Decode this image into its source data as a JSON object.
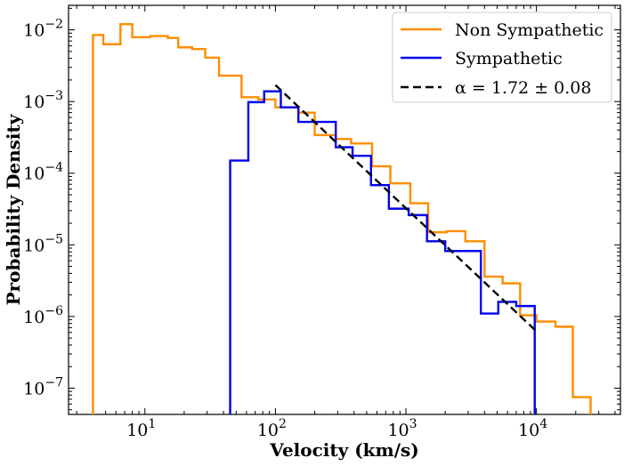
{
  "chart_data": {
    "type": "histogram",
    "title": "",
    "xlabel": "Velocity (km/s)",
    "ylabel": "Probability Density",
    "xscale": "log",
    "yscale": "log",
    "xlim": [
      2.6,
      44000
    ],
    "ylim": [
      4.3e-08,
      0.022
    ],
    "grid": false,
    "legend_position": "top-right",
    "x_tick_labels": [
      {
        "value": 10,
        "label": "10",
        "exp": "1"
      },
      {
        "value": 100,
        "label": "10",
        "exp": "2"
      },
      {
        "value": 1000,
        "label": "10",
        "exp": "3"
      },
      {
        "value": 10000,
        "label": "10",
        "exp": "4"
      }
    ],
    "y_tick_labels": [
      {
        "value": 1e-07,
        "label": "10",
        "exp": "−7"
      },
      {
        "value": 1e-06,
        "label": "10",
        "exp": "−6"
      },
      {
        "value": 1e-05,
        "label": "10",
        "exp": "−5"
      },
      {
        "value": 0.0001,
        "label": "10",
        "exp": "−4"
      },
      {
        "value": 0.001,
        "label": "10",
        "exp": "−3"
      },
      {
        "value": 0.01,
        "label": "10",
        "exp": "−2"
      }
    ],
    "series": [
      {
        "name": "Non Sympathetic",
        "kind": "step",
        "color": "#ff8c00",
        "bin_edges": [
          4.0,
          4.8,
          6.5,
          8.0,
          11.0,
          15.0,
          18.0,
          23.0,
          29.0,
          37.0,
          55.0,
          74.0,
          100.0,
          150.0,
          200.0,
          290.0,
          380.0,
          550.0,
          760.0,
          1080.0,
          1480.0,
          2050.0,
          2850.0,
          4000.0,
          5500.0,
          7500.0,
          10000.0,
          14000.0,
          19000.0,
          26000.0,
          35000.0
        ],
        "values": [
          0.0085,
          0.0063,
          0.012,
          0.0079,
          0.0082,
          0.0077,
          0.0057,
          0.0054,
          0.0041,
          0.0023,
          0.00115,
          0.00107,
          0.00083,
          0.0007,
          0.00034,
          0.0003,
          0.00026,
          0.000125,
          7.2e-05,
          3.8e-05,
          1.5e-05,
          1.55e-05,
          1.12e-05,
          3.6e-06,
          2.9e-06,
          1.04e-06,
          8.5e-07,
          7.2e-07,
          7.5e-08,
          3e-08
        ]
      },
      {
        "name": "Sympathetic",
        "kind": "step",
        "color": "#0000ee",
        "bin_edges": [
          45.0,
          62.0,
          82.0,
          110.0,
          150.0,
          210.0,
          290.0,
          390.0,
          540.0,
          740.0,
          1050.0,
          1450.0,
          2000.0,
          2750.0,
          3750.0,
          5100.0,
          7000.0,
          9700.0
        ],
        "values": [
          0.00015,
          0.00098,
          0.00139,
          0.00083,
          0.00052,
          0.00052,
          0.00023,
          0.000175,
          6.8e-05,
          3.2e-05,
          2.6e-05,
          1.12e-05,
          8.2e-06,
          8.2e-06,
          1.1e-06,
          1.6e-06,
          1.4e-06
        ]
      },
      {
        "name": "α = 1.72 ± 0.08",
        "kind": "fit",
        "style": "dashed",
        "color": "#000000",
        "x": [
          100,
          10000
        ],
        "y": [
          0.0017,
          6.2e-07
        ]
      }
    ]
  }
}
